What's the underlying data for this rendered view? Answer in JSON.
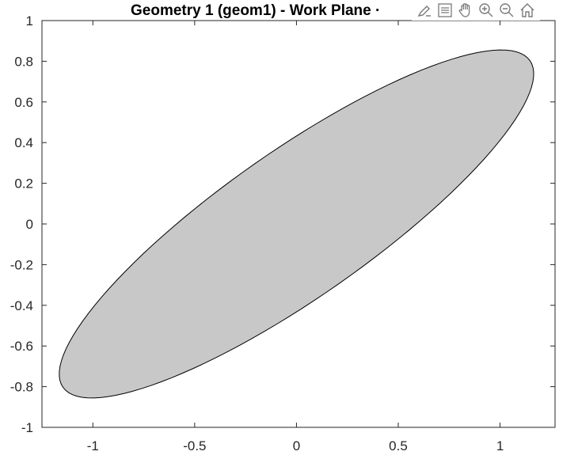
{
  "chart_data": {
    "type": "area",
    "title": "Geometry 1 (geom1) - Work Plane ·",
    "xlabel": "",
    "ylabel": "",
    "xlim": [
      -1.25,
      1.27
    ],
    "ylim": [
      -1,
      1
    ],
    "xticks": [
      -1,
      -0.5,
      0,
      0.5,
      1
    ],
    "xtick_labels": [
      "-1",
      "-0.5",
      "0",
      "0.5",
      "1"
    ],
    "yticks": [
      -1,
      -0.8,
      -0.6,
      -0.4,
      -0.2,
      0,
      0.2,
      0.4,
      0.6,
      0.8,
      1
    ],
    "ytick_labels": [
      "-1",
      "-0.8",
      "-0.6",
      "-0.4",
      "-0.2",
      "0",
      "0.2",
      "0.4",
      "0.6",
      "0.8",
      "1"
    ],
    "grid": false,
    "shape": {
      "kind": "ellipse",
      "center": [
        0,
        0
      ],
      "semi_major": 1.4,
      "semi_minor": 0.36,
      "rotation_deg": 35,
      "fill_color": "#c8c8c8",
      "edge_color": "#000000"
    }
  },
  "toolbar": {
    "icons": [
      "brush-icon",
      "legend-icon",
      "pan-hand-icon",
      "zoom-in-icon",
      "zoom-out-icon",
      "home-icon"
    ]
  }
}
